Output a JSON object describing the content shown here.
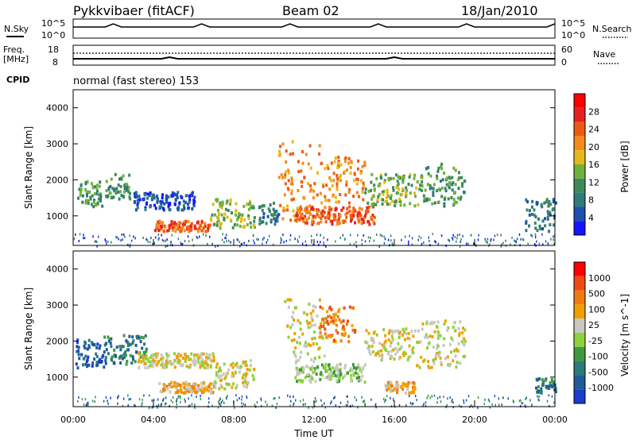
{
  "header": {
    "station": "Pykkvibaer (fitACF)",
    "beam": "Beam 02",
    "date": "18/Jan/2010"
  },
  "panels": {
    "nsky": {
      "label": "N.Sky",
      "left_ticks": [
        "10^5",
        "10^0"
      ],
      "right_ticks": [
        "10^5",
        "10^0"
      ],
      "right_label": "N.Search"
    },
    "freq": {
      "label_1": "Freq.",
      "label_2": "[MHz]",
      "left_ticks": [
        "18",
        "8"
      ],
      "right_ticks": [
        "60",
        "0"
      ],
      "right_label": "Nave"
    },
    "cpid": {
      "label": "CPID",
      "text": "normal (fast stereo) 153"
    }
  },
  "colors": {
    "power_scale": [
      "#1414ff",
      "#1c4fb0",
      "#2f7a7a",
      "#3f8a5a",
      "#6fb23a",
      "#e8b81a",
      "#f58a1a",
      "#ee5a14",
      "#e52222",
      "#ff0000"
    ],
    "velocity_scale": [
      "#1a3ccf",
      "#1f5a9a",
      "#2a7a7a",
      "#3f9a3f",
      "#8fd23a",
      "#c8c8c0",
      "#f0a000",
      "#f07a10",
      "#ef4a14",
      "#ff0000"
    ]
  },
  "chart_data": [
    {
      "type": "heatmap",
      "title": "Power",
      "ylabel": "Slant Range [km]",
      "colorbar_label": "Power [dB]",
      "colorbar_ticks": [
        "28",
        "24",
        "20",
        "16",
        "12",
        "8",
        "4"
      ],
      "y_ticks": [
        "4000",
        "3000",
        "2000",
        "1000"
      ],
      "ylim": [
        180,
        4500
      ],
      "xlim": [
        0,
        24
      ],
      "regions": [
        {
          "t0": 0.1,
          "t1": 1.4,
          "r0": 1300,
          "r1": 2000,
          "level": 3
        },
        {
          "t0": 1.5,
          "t1": 2.8,
          "r0": 1500,
          "r1": 2200,
          "level": 3
        },
        {
          "t0": 3.0,
          "t1": 6.0,
          "r0": 1200,
          "r1": 1700,
          "level": 1
        },
        {
          "t0": 4.0,
          "t1": 6.8,
          "r0": 600,
          "r1": 900,
          "level": 7
        },
        {
          "t0": 6.8,
          "t1": 9.0,
          "r0": 700,
          "r1": 1500,
          "level": 4
        },
        {
          "t0": 9.2,
          "t1": 10.2,
          "r0": 800,
          "r1": 1400,
          "level": 2
        },
        {
          "t0": 10.2,
          "t1": 12.3,
          "r0": 900,
          "r1": 3100,
          "level": 6
        },
        {
          "t0": 12.3,
          "t1": 14.5,
          "r0": 1400,
          "r1": 2700,
          "level": 6
        },
        {
          "t0": 11.0,
          "t1": 15.0,
          "r0": 800,
          "r1": 1300,
          "level": 7
        },
        {
          "t0": 14.5,
          "t1": 17.5,
          "r0": 1300,
          "r1": 2200,
          "level": 4
        },
        {
          "t0": 17.5,
          "t1": 19.5,
          "r0": 1300,
          "r1": 2500,
          "level": 3
        },
        {
          "t0": 22.5,
          "t1": 24.0,
          "r0": 600,
          "r1": 1500,
          "level": 2
        }
      ]
    },
    {
      "type": "heatmap",
      "title": "Velocity",
      "ylabel": "Slant Range [km]",
      "xlabel": "Time UT",
      "colorbar_label": "Velocity [m s^-1]",
      "colorbar_ticks": [
        "1000",
        "500",
        "100",
        "25",
        "-25",
        "-100",
        "-500",
        "-1000"
      ],
      "y_ticks": [
        "4000",
        "3000",
        "2000",
        "1000"
      ],
      "x_ticks": [
        "00:00",
        "04:00",
        "08:00",
        "12:00",
        "16:00",
        "20:00",
        "00:00"
      ],
      "ylim": [
        180,
        4500
      ],
      "xlim": [
        0,
        24
      ],
      "regions": [
        {
          "t0": 0.1,
          "t1": 1.5,
          "r0": 1300,
          "r1": 2100,
          "level": 1
        },
        {
          "t0": 1.5,
          "t1": 3.6,
          "r0": 1400,
          "r1": 2200,
          "level": 2
        },
        {
          "t0": 4.2,
          "t1": 7.0,
          "r0": 600,
          "r1": 900,
          "level": 6
        },
        {
          "t0": 3.2,
          "t1": 7.0,
          "r0": 1300,
          "r1": 1700,
          "level": 5
        },
        {
          "t0": 7.0,
          "t1": 9.0,
          "r0": 700,
          "r1": 1500,
          "level": 5
        },
        {
          "t0": 10.5,
          "t1": 12.5,
          "r0": 1400,
          "r1": 3200,
          "level": 5
        },
        {
          "t0": 12.2,
          "t1": 14.0,
          "r0": 2000,
          "r1": 3000,
          "level": 7
        },
        {
          "t0": 11.0,
          "t1": 14.5,
          "r0": 900,
          "r1": 1400,
          "level": 4
        },
        {
          "t0": 14.5,
          "t1": 17.0,
          "r0": 1500,
          "r1": 2400,
          "level": 5
        },
        {
          "t0": 17.0,
          "t1": 19.5,
          "r0": 1300,
          "r1": 2600,
          "level": 5
        },
        {
          "t0": 15.5,
          "t1": 17.0,
          "r0": 600,
          "r1": 900,
          "level": 6
        },
        {
          "t0": 23.0,
          "t1": 24.0,
          "r0": 600,
          "r1": 1000,
          "level": 2
        }
      ]
    }
  ]
}
